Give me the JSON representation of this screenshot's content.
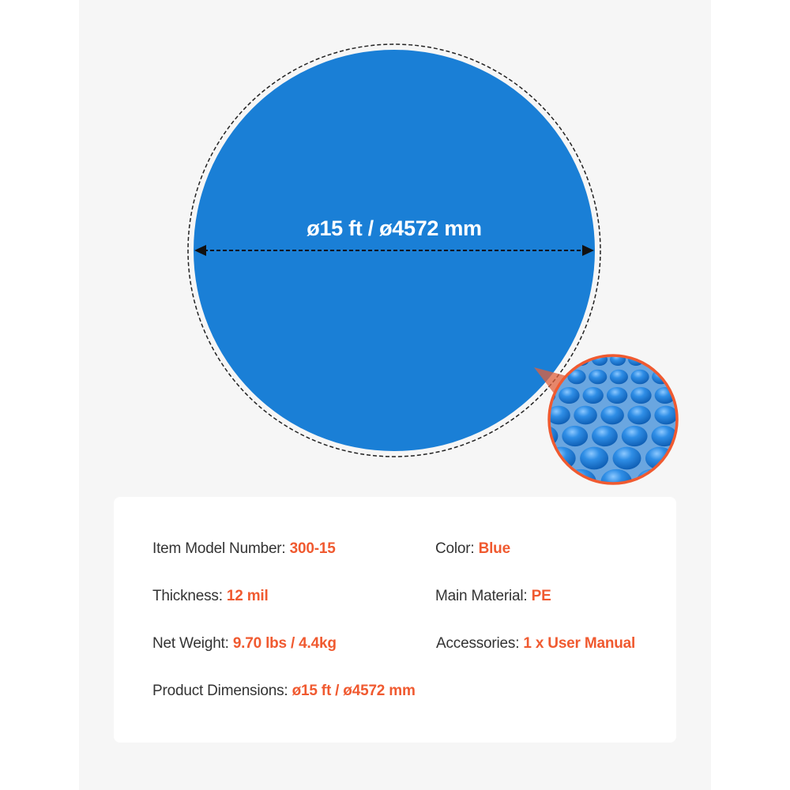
{
  "diameter_label": "ø15 ft / ø4572 mm",
  "colors": {
    "cover_blue": "#1a7fd6",
    "accent": "#f05a30",
    "background": "#f6f6f6"
  },
  "specs": [
    {
      "label": "Item Model Number:",
      "value": "300-15"
    },
    {
      "label": "Color:",
      "value": "Blue"
    },
    {
      "label": "Thickness:",
      "value": "12 mil"
    },
    {
      "label": "Main Material:",
      "value": "PE"
    },
    {
      "label": "Net Weight:",
      "value": "9.70 lbs / 4.4kg"
    },
    {
      "label": "Accessories:",
      "value": "1 x User Manual"
    },
    {
      "label": "Product Dimensions:",
      "value": "ø15 ft / ø4572 mm"
    }
  ]
}
